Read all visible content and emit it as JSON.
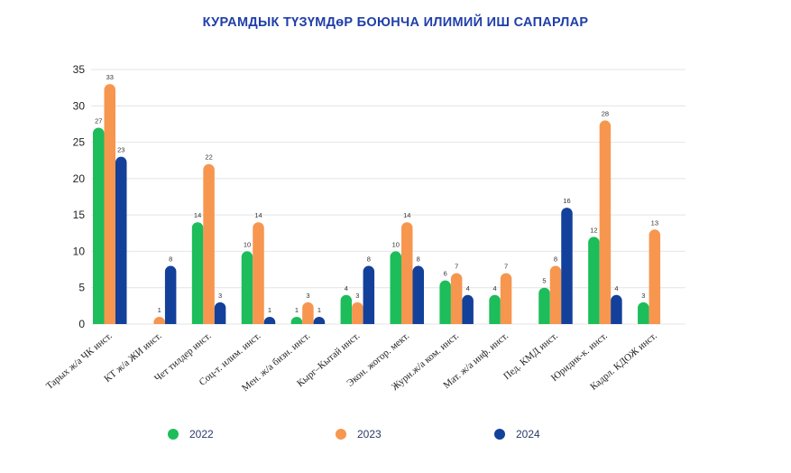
{
  "chart_data": {
    "type": "bar",
    "title": "КУРАМДЫК ТҮЗҮМДөР БОЮНЧА ИЛИМИЙ ИШ САПАРЛАР",
    "categories": [
      "Тарых ж/а ЧК инст.",
      "КТ ж/а ЖИ инст.",
      "Чет тилдер инст.",
      "Соц-т. илим. инст.",
      "Мен. ж/а бизн. инст.",
      "Кырг–Кытай инст.",
      "Экон. жогор. мект.",
      "Журн.ж/а ком. инст.",
      "Мат. ж/а инф. инст.",
      "Пед. КМД инст.",
      "Юридик-к. инст.",
      "Кадрл. КДОЖ инст."
    ],
    "series": [
      {
        "name": "2022",
        "color": "#1cbd5a",
        "values": [
          27,
          null,
          14,
          10,
          1,
          4,
          10,
          6,
          4,
          5,
          12,
          3
        ]
      },
      {
        "name": "2023",
        "color": "#f7964f",
        "values": [
          33,
          1,
          22,
          14,
          3,
          3,
          14,
          7,
          7,
          8,
          28,
          13
        ]
      },
      {
        "name": "2024",
        "color": "#13409a",
        "values": [
          23,
          8,
          3,
          1,
          1,
          8,
          8,
          4,
          null,
          16,
          4,
          null
        ]
      }
    ],
    "ylim": [
      0,
      35
    ],
    "yticks": [
      0,
      5,
      10,
      15,
      20,
      25,
      30,
      35
    ],
    "grid": true,
    "legend_position": "bottom"
  }
}
